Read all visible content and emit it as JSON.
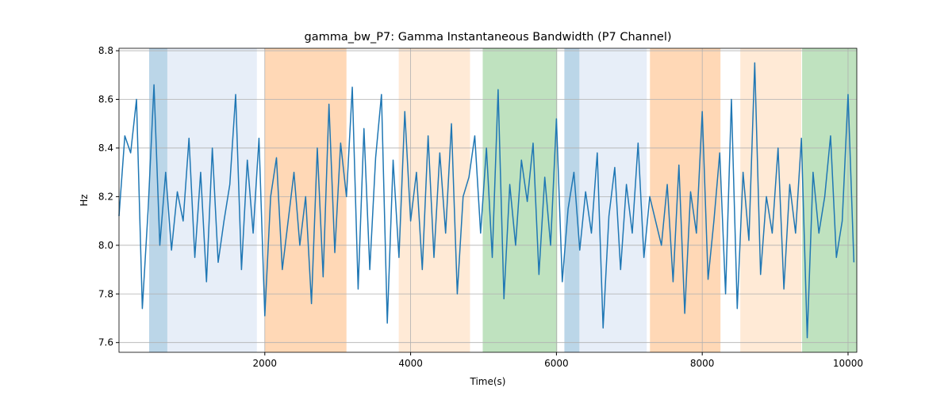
{
  "chart_data": {
    "type": "line",
    "title": "gamma_bw_P7: Gamma Instantaneous Bandwidth (P7 Channel)",
    "x_label": "Time(s)",
    "y_label": "Hz",
    "xlim": [
      0,
      10120
    ],
    "ylim": [
      7.56,
      8.81
    ],
    "xticks": [
      2000,
      4000,
      6000,
      8000,
      10000
    ],
    "yticks": [
      7.6,
      7.8,
      {
        "value": 8,
        "label": "8.0"
      },
      8.2,
      8.4,
      8.6,
      8.8
    ],
    "grid": true,
    "spans": [
      {
        "start": 413,
        "end": 663,
        "color": "#1f77b4",
        "opacity": 0.3
      },
      {
        "start": 663,
        "end": 1891,
        "color": "#aec7e8",
        "opacity": 0.3
      },
      {
        "start": 2000,
        "end": 3120,
        "color": "#ff7f0e",
        "opacity": 0.3
      },
      {
        "start": 3837,
        "end": 4815,
        "color": "#ffbb78",
        "opacity": 0.3
      },
      {
        "start": 4989,
        "end": 6011,
        "color": "#2ca02c",
        "opacity": 0.3
      },
      {
        "start": 6109,
        "end": 6315,
        "color": "#1f77b4",
        "opacity": 0.3
      },
      {
        "start": 6315,
        "end": 7239,
        "color": "#aec7e8",
        "opacity": 0.3
      },
      {
        "start": 7283,
        "end": 8250,
        "color": "#ff7f0e",
        "opacity": 0.3
      },
      {
        "start": 8522,
        "end": 9359,
        "color": "#ffbb78",
        "opacity": 0.3
      },
      {
        "start": 9370,
        "end": 10120,
        "color": "#2ca02c",
        "opacity": 0.3
      }
    ],
    "x": [
      0,
      80,
      160,
      240,
      320,
      400,
      480,
      560,
      640,
      720,
      800,
      880,
      960,
      1040,
      1120,
      1200,
      1280,
      1360,
      1440,
      1520,
      1600,
      1680,
      1760,
      1840,
      1920,
      2000,
      2080,
      2160,
      2240,
      2320,
      2400,
      2480,
      2560,
      2640,
      2720,
      2800,
      2880,
      2960,
      3040,
      3120,
      3200,
      3280,
      3360,
      3440,
      3520,
      3600,
      3680,
      3760,
      3840,
      3920,
      4000,
      4080,
      4160,
      4240,
      4320,
      4400,
      4480,
      4560,
      4640,
      4720,
      4800,
      4880,
      4960,
      5040,
      5120,
      5200,
      5280,
      5360,
      5440,
      5520,
      5600,
      5680,
      5760,
      5840,
      5920,
      6000,
      6080,
      6160,
      6240,
      6320,
      6400,
      6480,
      6560,
      6640,
      6720,
      6800,
      6880,
      6960,
      7040,
      7120,
      7200,
      7280,
      7360,
      7440,
      7520,
      7600,
      7680,
      7760,
      7840,
      7920,
      8000,
      8080,
      8160,
      8240,
      8320,
      8400,
      8480,
      8560,
      8640,
      8720,
      8800,
      8880,
      8960,
      9040,
      9120,
      9200,
      9280,
      9360,
      9440,
      9520,
      9600,
      9680,
      9760,
      9840,
      9920,
      10000,
      10080
    ],
    "series": [
      {
        "color": "#1f77b4",
        "values": [
          8.12,
          8.45,
          8.38,
          8.6,
          7.74,
          8.15,
          8.66,
          8.0,
          8.3,
          7.98,
          8.22,
          8.1,
          8.44,
          7.95,
          8.3,
          7.85,
          8.4,
          7.93,
          8.1,
          8.25,
          8.62,
          7.9,
          8.35,
          8.05,
          8.44,
          7.71,
          8.2,
          8.36,
          7.9,
          8.1,
          8.3,
          8.0,
          8.2,
          7.76,
          8.4,
          7.87,
          8.58,
          7.97,
          8.42,
          8.2,
          8.65,
          7.82,
          8.48,
          7.9,
          8.36,
          8.62,
          7.68,
          8.35,
          7.95,
          8.55,
          8.1,
          8.3,
          7.9,
          8.45,
          7.95,
          8.38,
          8.05,
          8.5,
          7.8,
          8.2,
          8.28,
          8.45,
          8.05,
          8.4,
          7.95,
          8.64,
          7.78,
          8.25,
          8.0,
          8.35,
          8.18,
          8.42,
          7.88,
          8.28,
          8.0,
          8.52,
          7.85,
          8.15,
          8.3,
          7.98,
          8.22,
          8.05,
          8.38,
          7.66,
          8.12,
          8.32,
          7.9,
          8.25,
          8.05,
          8.42,
          7.95,
          8.2,
          8.1,
          8.0,
          8.25,
          7.85,
          8.33,
          7.72,
          8.22,
          8.05,
          8.55,
          7.86,
          8.1,
          8.38,
          7.8,
          8.6,
          7.74,
          8.3,
          8.02,
          8.75,
          7.88,
          8.2,
          8.05,
          8.4,
          7.82,
          8.25,
          8.05,
          8.44,
          7.62,
          8.3,
          8.05,
          8.2,
          8.45,
          7.95,
          8.1,
          8.62,
          7.93
        ]
      }
    ]
  }
}
